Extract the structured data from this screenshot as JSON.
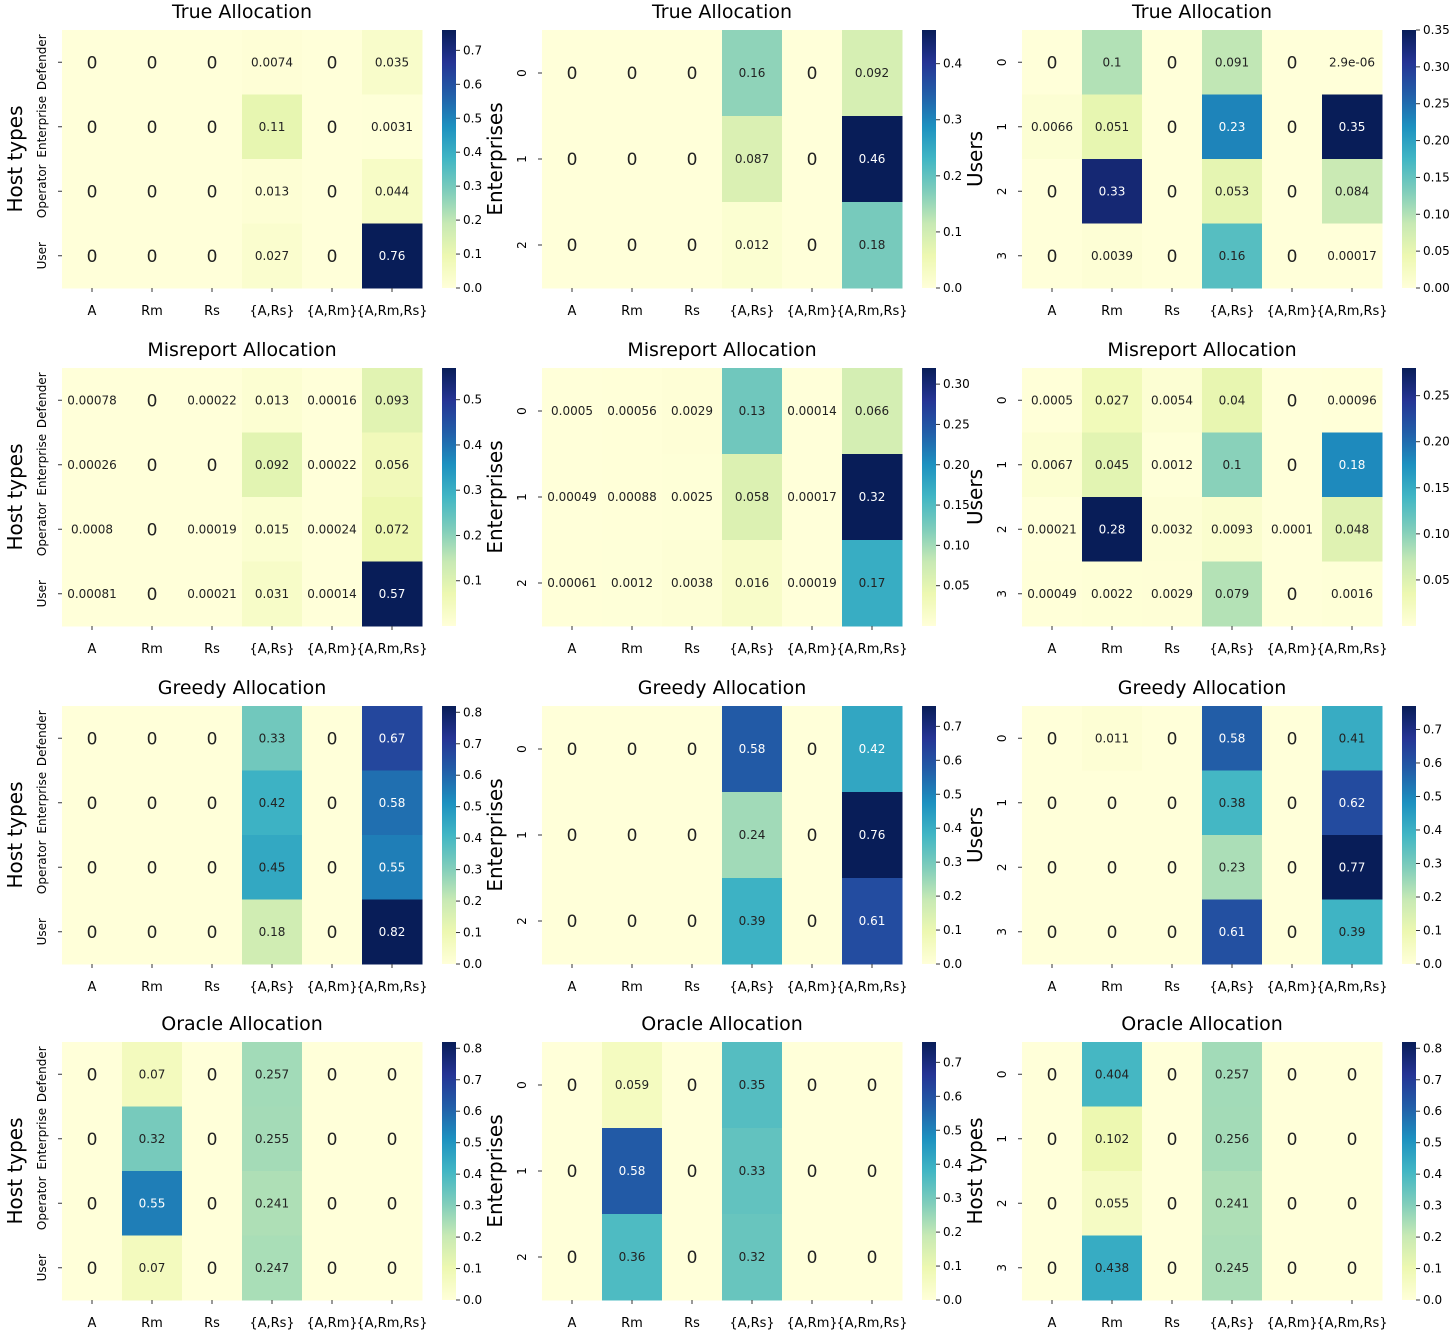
{
  "chart_data": [
    {
      "type": "heatmap",
      "title": "True Allocation",
      "ylabel": "Host types",
      "columns": [
        "A",
        "Rm",
        "Rs",
        "{A,Rs}",
        "{A,Rm}",
        "{A,Rm,Rs}"
      ],
      "rows": [
        "Defender",
        "Enterprise",
        "Operator",
        "User"
      ],
      "values": [
        [
          0,
          0,
          0,
          0.0074,
          0,
          0.035
        ],
        [
          0,
          0,
          0,
          0.11,
          0,
          0.0031
        ],
        [
          0,
          0,
          0,
          0.013,
          0,
          0.044
        ],
        [
          0,
          0,
          0,
          0.027,
          0,
          0.76
        ]
      ],
      "labels": [
        [
          "0",
          "0",
          "0",
          "0.0074",
          "0",
          "0.035"
        ],
        [
          "0",
          "0",
          "0",
          "0.11",
          "0",
          "0.0031"
        ],
        [
          "0",
          "0",
          "0",
          "0.013",
          "0",
          "0.044"
        ],
        [
          "0",
          "0",
          "0",
          "0.027",
          "0",
          "0.76"
        ]
      ],
      "colorbar_range": [
        0,
        0.76
      ],
      "colorbar_ticks": [
        0.0,
        0.1,
        0.2,
        0.3,
        0.4,
        0.5,
        0.6,
        0.7
      ],
      "colorbar_tick_labels": [
        "0.0",
        "0.1",
        "0.2",
        "0.3",
        "0.4",
        "0.5",
        "0.6",
        "0.7"
      ]
    },
    {
      "type": "heatmap",
      "title": "True Allocation",
      "ylabel": "Enterprises",
      "columns": [
        "A",
        "Rm",
        "Rs",
        "{A,Rs}",
        "{A,Rm}",
        "{A,Rm,Rs}"
      ],
      "rows": [
        "0",
        "1",
        "2"
      ],
      "values": [
        [
          0,
          0,
          0,
          0.16,
          0,
          0.092
        ],
        [
          0,
          0,
          0,
          0.087,
          0,
          0.46
        ],
        [
          0,
          0,
          0,
          0.012,
          0,
          0.18
        ]
      ],
      "labels": [
        [
          "0",
          "0",
          "0",
          "0.16",
          "0",
          "0.092"
        ],
        [
          "0",
          "0",
          "0",
          "0.087",
          "0",
          "0.46"
        ],
        [
          "0",
          "0",
          "0",
          "0.012",
          "0",
          "0.18"
        ]
      ],
      "colorbar_range": [
        0,
        0.46
      ],
      "colorbar_ticks": [
        0.0,
        0.1,
        0.2,
        0.3,
        0.4
      ],
      "colorbar_tick_labels": [
        "0.0",
        "0.1",
        "0.2",
        "0.3",
        "0.4"
      ]
    },
    {
      "type": "heatmap",
      "title": "True Allocation",
      "ylabel": "Users",
      "columns": [
        "A",
        "Rm",
        "Rs",
        "{A,Rs}",
        "{A,Rm}",
        "{A,Rm,Rs}"
      ],
      "rows": [
        "0",
        "1",
        "2",
        "3"
      ],
      "values": [
        [
          0,
          0.1,
          0,
          0.091,
          0,
          2.9e-06
        ],
        [
          0.0066,
          0.051,
          0,
          0.23,
          0,
          0.35
        ],
        [
          0,
          0.33,
          0,
          0.053,
          0,
          0.084
        ],
        [
          0,
          0.0039,
          0,
          0.16,
          0,
          0.00017
        ]
      ],
      "labels": [
        [
          "0",
          "0.1",
          "0",
          "0.091",
          "0",
          "2.9e-06"
        ],
        [
          "0.0066",
          "0.051",
          "0",
          "0.23",
          "0",
          "0.35"
        ],
        [
          "0",
          "0.33",
          "0",
          "0.053",
          "0",
          "0.084"
        ],
        [
          "0",
          "0.0039",
          "0",
          "0.16",
          "0",
          "0.00017"
        ]
      ],
      "colorbar_range": [
        0,
        0.35
      ],
      "colorbar_ticks": [
        0.0,
        0.05,
        0.1,
        0.15,
        0.2,
        0.25,
        0.3,
        0.35
      ],
      "colorbar_tick_labels": [
        "0.00",
        "0.05",
        "0.10",
        "0.15",
        "0.20",
        "0.25",
        "0.30",
        "0.35"
      ]
    },
    {
      "type": "heatmap",
      "title": "Misreport Allocation",
      "ylabel": "Host types",
      "columns": [
        "A",
        "Rm",
        "Rs",
        "{A,Rs}",
        "{A,Rm}",
        "{A,Rm,Rs}"
      ],
      "rows": [
        "Defender",
        "Enterprise",
        "Operator",
        "User"
      ],
      "values": [
        [
          0.00078,
          0,
          0.00022,
          0.013,
          0.00016,
          0.093
        ],
        [
          0.00026,
          0,
          0,
          0.092,
          0.00022,
          0.056
        ],
        [
          0.0008,
          0,
          0.00019,
          0.015,
          0.00024,
          0.072
        ],
        [
          0.00081,
          0,
          0.00021,
          0.031,
          0.00014,
          0.57
        ]
      ],
      "labels": [
        [
          "0.00078",
          "0",
          "0.00022",
          "0.013",
          "0.00016",
          "0.093"
        ],
        [
          "0.00026",
          "0",
          "0",
          "0.092",
          "0.00022",
          "0.056"
        ],
        [
          "0.0008",
          "0",
          "0.00019",
          "0.015",
          "0.00024",
          "0.072"
        ],
        [
          "0.00081",
          "0",
          "0.00021",
          "0.031",
          "0.00014",
          "0.57"
        ]
      ],
      "colorbar_range": [
        0,
        0.57
      ],
      "colorbar_ticks": [
        0.1,
        0.2,
        0.3,
        0.4,
        0.5
      ],
      "colorbar_tick_labels": [
        "0.1",
        "0.2",
        "0.3",
        "0.4",
        "0.5"
      ]
    },
    {
      "type": "heatmap",
      "title": "Misreport Allocation",
      "ylabel": "Enterprises",
      "columns": [
        "A",
        "Rm",
        "Rs",
        "{A,Rs}",
        "{A,Rm}",
        "{A,Rm,Rs}"
      ],
      "rows": [
        "0",
        "1",
        "2"
      ],
      "values": [
        [
          0.0005,
          0.00056,
          0.0029,
          0.13,
          0.00014,
          0.066
        ],
        [
          0.00049,
          0.00088,
          0.0025,
          0.058,
          0.00017,
          0.32
        ],
        [
          0.00061,
          0.0012,
          0.0038,
          0.016,
          0.00019,
          0.17
        ]
      ],
      "labels": [
        [
          "0.0005",
          "0.00056",
          "0.0029",
          "0.13",
          "0.00014",
          "0.066"
        ],
        [
          "0.00049",
          "0.00088",
          "0.0025",
          "0.058",
          "0.00017",
          "0.32"
        ],
        [
          "0.00061",
          "0.0012",
          "0.0038",
          "0.016",
          "0.00019",
          "0.17"
        ]
      ],
      "colorbar_range": [
        0,
        0.32
      ],
      "colorbar_ticks": [
        0.05,
        0.1,
        0.15,
        0.2,
        0.25,
        0.3
      ],
      "colorbar_tick_labels": [
        "0.05",
        "0.10",
        "0.15",
        "0.20",
        "0.25",
        "0.30"
      ]
    },
    {
      "type": "heatmap",
      "title": "Misreport Allocation",
      "ylabel": "Users",
      "columns": [
        "A",
        "Rm",
        "Rs",
        "{A,Rs}",
        "{A,Rm}",
        "{A,Rm,Rs}"
      ],
      "rows": [
        "0",
        "1",
        "2",
        "3"
      ],
      "values": [
        [
          0.0005,
          0.027,
          0.0054,
          0.04,
          0,
          0.00096
        ],
        [
          0.0067,
          0.045,
          0.0012,
          0.1,
          0,
          0.18
        ],
        [
          0.00021,
          0.28,
          0.0032,
          0.0093,
          0.0001,
          0.048
        ],
        [
          0.00049,
          0.0022,
          0.0029,
          0.079,
          0,
          0.0016
        ]
      ],
      "labels": [
        [
          "0.0005",
          "0.027",
          "0.0054",
          "0.04",
          "0",
          "0.00096"
        ],
        [
          "0.0067",
          "0.045",
          "0.0012",
          "0.1",
          "0",
          "0.18"
        ],
        [
          "0.00021",
          "0.28",
          "0.0032",
          "0.0093",
          "0.0001",
          "0.048"
        ],
        [
          "0.00049",
          "0.0022",
          "0.0029",
          "0.079",
          "0",
          "0.0016"
        ]
      ],
      "colorbar_range": [
        0,
        0.28
      ],
      "colorbar_ticks": [
        0.05,
        0.1,
        0.15,
        0.2,
        0.25
      ],
      "colorbar_tick_labels": [
        "0.05",
        "0.10",
        "0.15",
        "0.20",
        "0.25"
      ]
    },
    {
      "type": "heatmap",
      "title": "Greedy Allocation",
      "ylabel": "Host types",
      "columns": [
        "A",
        "Rm",
        "Rs",
        "{A,Rs}",
        "{A,Rm}",
        "{A,Rm,Rs}"
      ],
      "rows": [
        "Defender",
        "Enterprise",
        "Operator",
        "User"
      ],
      "values": [
        [
          0,
          0,
          0,
          0.33,
          0,
          0.67
        ],
        [
          0,
          0,
          0,
          0.42,
          0,
          0.58
        ],
        [
          0,
          0,
          0,
          0.45,
          0,
          0.55
        ],
        [
          0,
          0,
          0,
          0.18,
          0,
          0.82
        ]
      ],
      "labels": [
        [
          "0",
          "0",
          "0",
          "0.33",
          "0",
          "0.67"
        ],
        [
          "0",
          "0",
          "0",
          "0.42",
          "0",
          "0.58"
        ],
        [
          "0",
          "0",
          "0",
          "0.45",
          "0",
          "0.55"
        ],
        [
          "0",
          "0",
          "0",
          "0.18",
          "0",
          "0.82"
        ]
      ],
      "colorbar_range": [
        0,
        0.82
      ],
      "colorbar_ticks": [
        0.0,
        0.1,
        0.2,
        0.3,
        0.4,
        0.5,
        0.6,
        0.7,
        0.8
      ],
      "colorbar_tick_labels": [
        "0.0",
        "0.1",
        "0.2",
        "0.3",
        "0.4",
        "0.5",
        "0.6",
        "0.7",
        "0.8"
      ]
    },
    {
      "type": "heatmap",
      "title": "Greedy Allocation",
      "ylabel": "Enterprises",
      "columns": [
        "A",
        "Rm",
        "Rs",
        "{A,Rs}",
        "{A,Rm}",
        "{A,Rm,Rs}"
      ],
      "rows": [
        "0",
        "1",
        "2"
      ],
      "values": [
        [
          0,
          0,
          0,
          0.58,
          0,
          0.42
        ],
        [
          0,
          0,
          0,
          0.24,
          0,
          0.76
        ],
        [
          0,
          0,
          0,
          0.39,
          0,
          0.61
        ]
      ],
      "labels": [
        [
          "0",
          "0",
          "0",
          "0.58",
          "0",
          "0.42"
        ],
        [
          "0",
          "0",
          "0",
          "0.24",
          "0",
          "0.76"
        ],
        [
          "0",
          "0",
          "0",
          "0.39",
          "0",
          "0.61"
        ]
      ],
      "colorbar_range": [
        0,
        0.76
      ],
      "colorbar_ticks": [
        0.0,
        0.1,
        0.2,
        0.3,
        0.4,
        0.5,
        0.6,
        0.7
      ],
      "colorbar_tick_labels": [
        "0.0",
        "0.1",
        "0.2",
        "0.3",
        "0.4",
        "0.5",
        "0.6",
        "0.7"
      ]
    },
    {
      "type": "heatmap",
      "title": "Greedy Allocation",
      "ylabel": "Users",
      "columns": [
        "A",
        "Rm",
        "Rs",
        "{A,Rs}",
        "{A,Rm}",
        "{A,Rm,Rs}"
      ],
      "rows": [
        "0",
        "1",
        "2",
        "3"
      ],
      "values": [
        [
          0,
          0.011,
          0,
          0.58,
          0,
          0.41
        ],
        [
          0,
          0,
          0,
          0.38,
          0,
          0.62
        ],
        [
          0,
          0,
          0,
          0.23,
          0,
          0.77
        ],
        [
          0,
          0,
          0,
          0.61,
          0,
          0.39
        ]
      ],
      "labels": [
        [
          "0",
          "0.011",
          "0",
          "0.58",
          "0",
          "0.41"
        ],
        [
          "0",
          "0",
          "0",
          "0.38",
          "0",
          "0.62"
        ],
        [
          "0",
          "0",
          "0",
          "0.23",
          "0",
          "0.77"
        ],
        [
          "0",
          "0",
          "0",
          "0.61",
          "0",
          "0.39"
        ]
      ],
      "colorbar_range": [
        0,
        0.77
      ],
      "colorbar_ticks": [
        0.0,
        0.1,
        0.2,
        0.3,
        0.4,
        0.5,
        0.6,
        0.7
      ],
      "colorbar_tick_labels": [
        "0.0",
        "0.1",
        "0.2",
        "0.3",
        "0.4",
        "0.5",
        "0.6",
        "0.7"
      ]
    },
    {
      "type": "heatmap",
      "title": "Oracle Allocation",
      "ylabel": "Host types",
      "columns": [
        "A",
        "Rm",
        "Rs",
        "{A,Rs}",
        "{A,Rm}",
        "{A,Rm,Rs}"
      ],
      "rows": [
        "Defender",
        "Enterprise",
        "Operator",
        "User"
      ],
      "values": [
        [
          0,
          0.07,
          0,
          0.257,
          0,
          0
        ],
        [
          0,
          0.32,
          0,
          0.255,
          0,
          0
        ],
        [
          0,
          0.55,
          0,
          0.241,
          0,
          0
        ],
        [
          0,
          0.07,
          0,
          0.247,
          0,
          0
        ]
      ],
      "labels": [
        [
          "0",
          "0.07",
          "0",
          "0.257",
          "0",
          "0"
        ],
        [
          "0",
          "0.32",
          "0",
          "0.255",
          "0",
          "0"
        ],
        [
          "0",
          "0.55",
          "0",
          "0.241",
          "0",
          "0"
        ],
        [
          "0",
          "0.07",
          "0",
          "0.247",
          "0",
          "0"
        ]
      ],
      "colorbar_range": [
        0,
        0.82
      ],
      "colorbar_ticks": [
        0.0,
        0.1,
        0.2,
        0.3,
        0.4,
        0.5,
        0.6,
        0.7,
        0.8
      ],
      "colorbar_tick_labels": [
        "0.0",
        "0.1",
        "0.2",
        "0.3",
        "0.4",
        "0.5",
        "0.6",
        "0.7",
        "0.8"
      ]
    },
    {
      "type": "heatmap",
      "title": "Oracle Allocation",
      "ylabel": "Enterprises",
      "columns": [
        "A",
        "Rm",
        "Rs",
        "{A,Rs}",
        "{A,Rm}",
        "{A,Rm,Rs}"
      ],
      "rows": [
        "0",
        "1",
        "2"
      ],
      "values": [
        [
          0,
          0.059,
          0,
          0.35,
          0,
          0
        ],
        [
          0,
          0.58,
          0,
          0.33,
          0,
          0
        ],
        [
          0,
          0.36,
          0,
          0.32,
          0,
          0
        ]
      ],
      "labels": [
        [
          "0",
          "0.059",
          "0",
          "0.35",
          "0",
          "0"
        ],
        [
          "0",
          "0.58",
          "0",
          "0.33",
          "0",
          "0"
        ],
        [
          "0",
          "0.36",
          "0",
          "0.32",
          "0",
          "0"
        ]
      ],
      "colorbar_range": [
        0,
        0.76
      ],
      "colorbar_ticks": [
        0.0,
        0.1,
        0.2,
        0.3,
        0.4,
        0.5,
        0.6,
        0.7
      ],
      "colorbar_tick_labels": [
        "0.0",
        "0.1",
        "0.2",
        "0.3",
        "0.4",
        "0.5",
        "0.6",
        "0.7"
      ]
    },
    {
      "type": "heatmap",
      "title": "Oracle Allocation",
      "ylabel": "Host types",
      "columns": [
        "A",
        "Rm",
        "Rs",
        "{A,Rs}",
        "{A,Rm}",
        "{A,Rm,Rs}"
      ],
      "rows": [
        "0",
        "1",
        "2",
        "3"
      ],
      "values": [
        [
          0,
          0.404,
          0,
          0.257,
          0,
          0
        ],
        [
          0,
          0.102,
          0,
          0.256,
          0,
          0
        ],
        [
          0,
          0.055,
          0,
          0.241,
          0,
          0
        ],
        [
          0,
          0.438,
          0,
          0.245,
          0,
          0
        ]
      ],
      "labels": [
        [
          "0",
          "0.404",
          "0",
          "0.257",
          "0",
          "0"
        ],
        [
          "0",
          "0.102",
          "0",
          "0.256",
          "0",
          "0"
        ],
        [
          "0",
          "0.055",
          "0",
          "0.241",
          "0",
          "0"
        ],
        [
          "0",
          "0.438",
          "0",
          "0.245",
          "0",
          "0"
        ]
      ],
      "colorbar_range": [
        0,
        0.82
      ],
      "colorbar_ticks": [
        0.0,
        0.1,
        0.2,
        0.3,
        0.4,
        0.5,
        0.6,
        0.7,
        0.8
      ],
      "colorbar_tick_labels": [
        "0.0",
        "0.1",
        "0.2",
        "0.3",
        "0.4",
        "0.5",
        "0.6",
        "0.7",
        "0.8"
      ]
    }
  ]
}
